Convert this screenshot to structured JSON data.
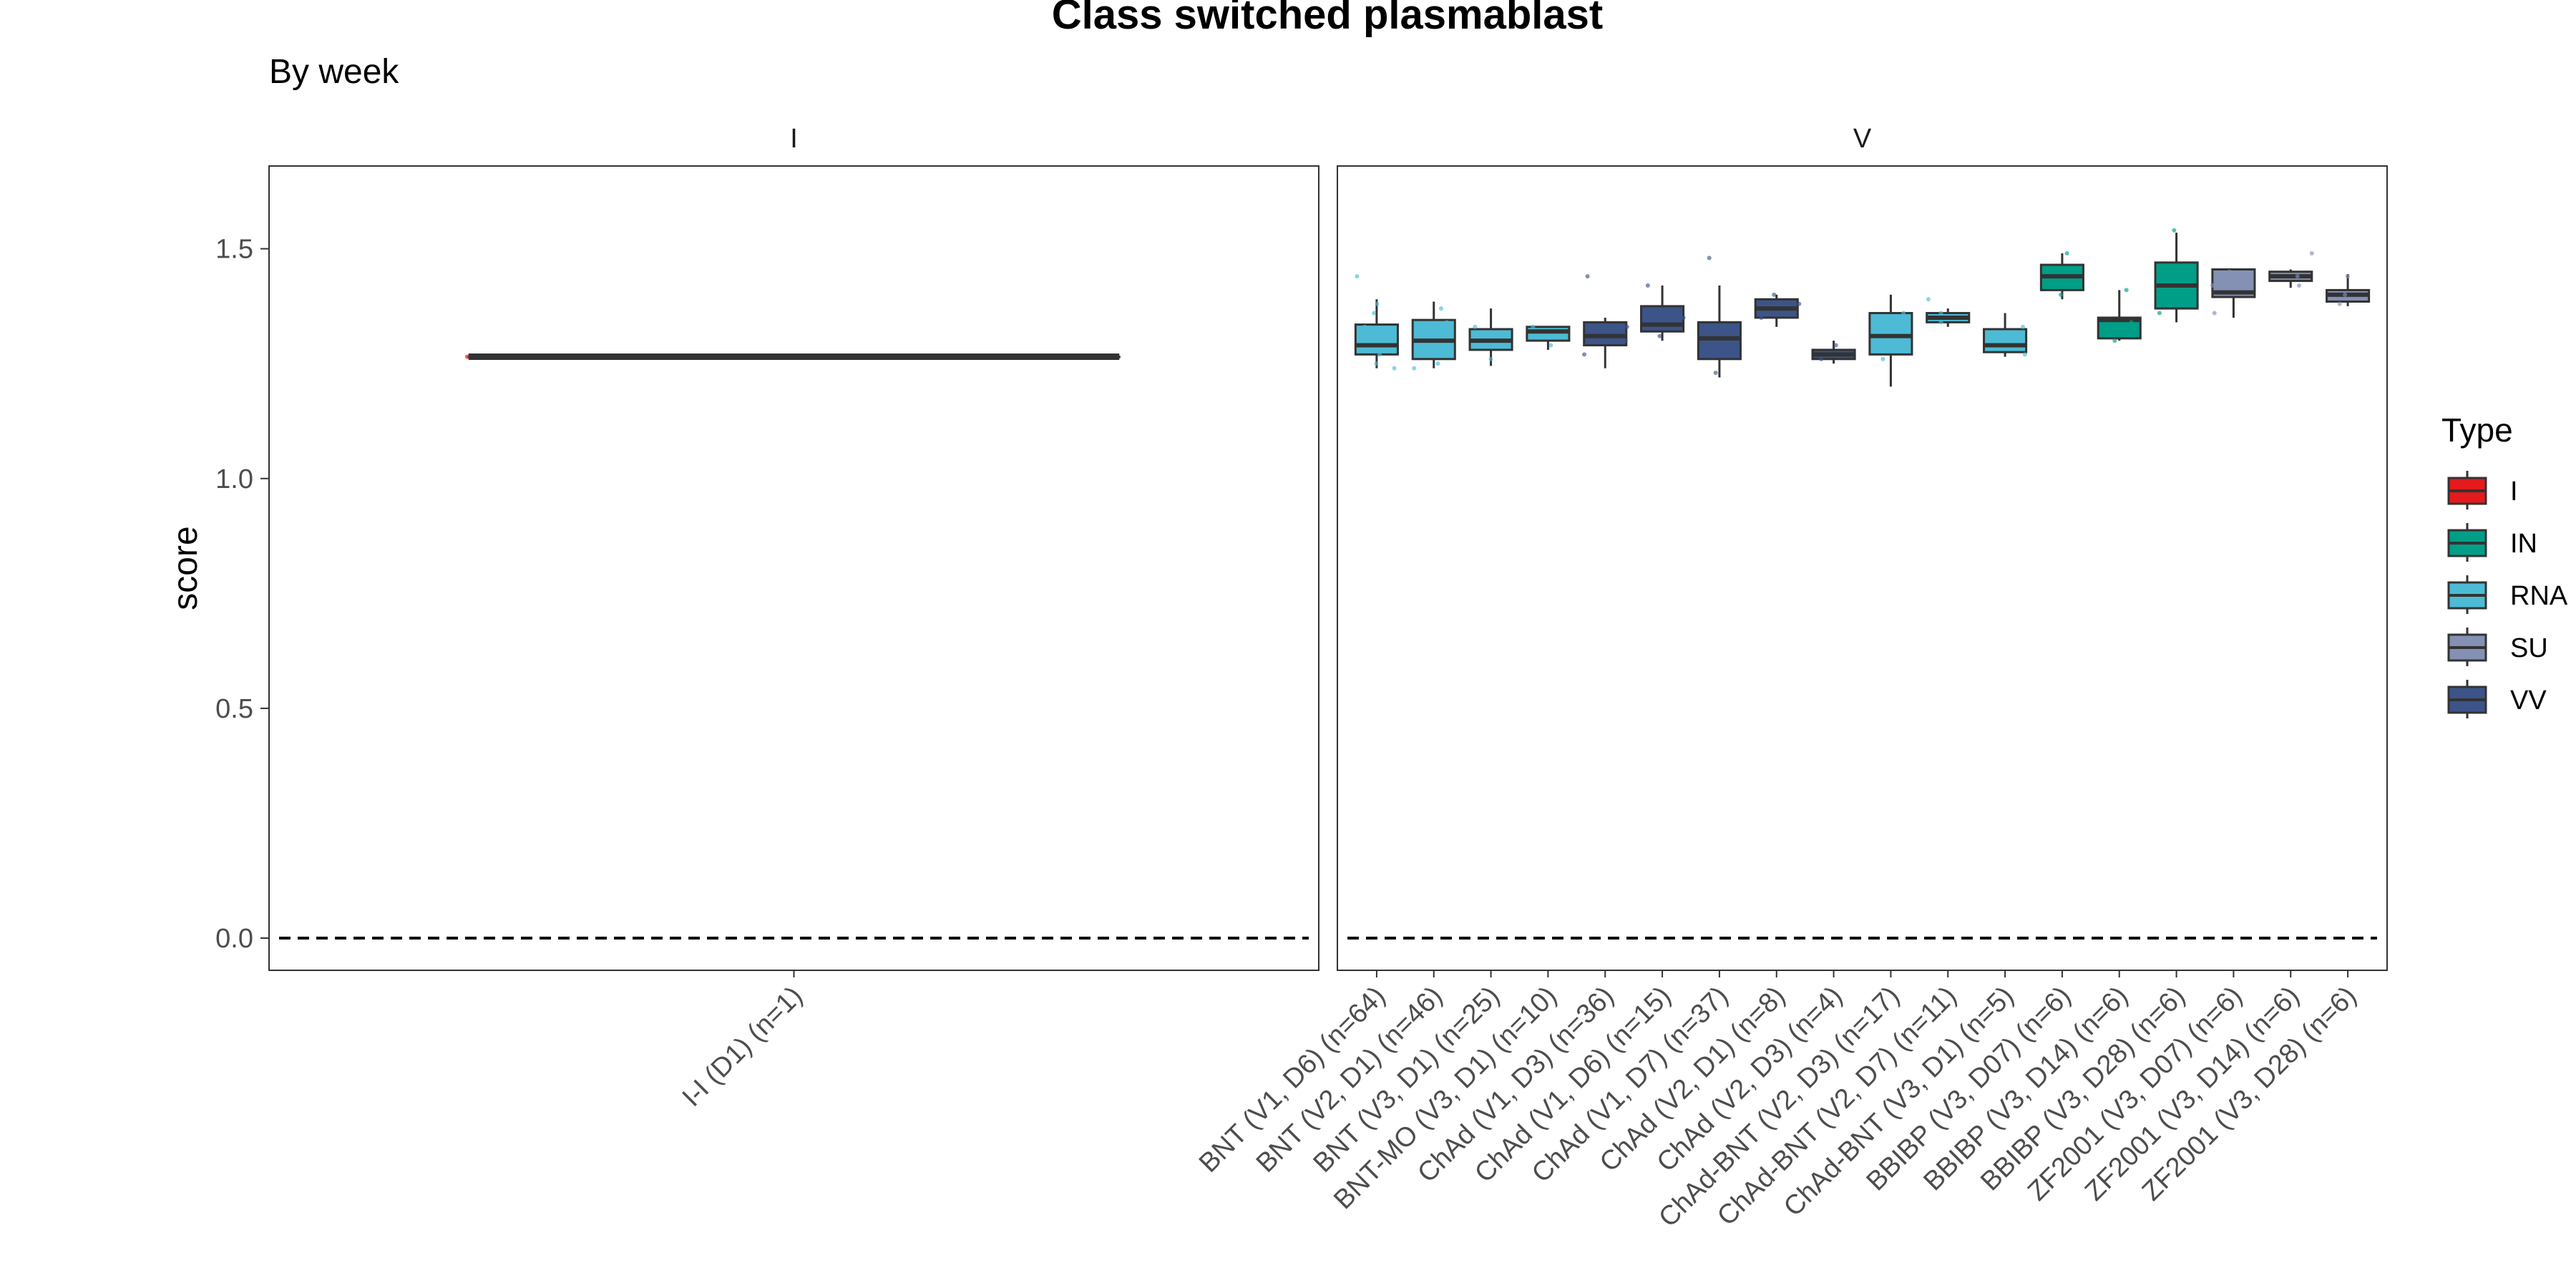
{
  "chart_data": {
    "type": "box",
    "title": "Class switched plasmablast",
    "subtitle": "By week",
    "ylabel": "score",
    "xlabel": "",
    "ylim": [
      -0.07,
      1.68
    ],
    "yticks": [
      0.0,
      0.5,
      1.0,
      1.5
    ],
    "ytick_labels": [
      "0.0",
      "0.5",
      "1.0",
      "1.5"
    ],
    "reference_line": {
      "y": 0.0,
      "style": "dashed"
    },
    "grid": false,
    "legend": {
      "title": "Type",
      "position": "right",
      "entries": [
        {
          "label": "I",
          "color": "#E41A1C"
        },
        {
          "label": "IN",
          "color": "#009E87"
        },
        {
          "label": "RNA",
          "color": "#4DBBD5"
        },
        {
          "label": "SU",
          "color": "#8491B4"
        },
        {
          "label": "VV",
          "color": "#3C5488"
        }
      ]
    },
    "type_colors": {
      "I": "#E41A1C",
      "IN": "#009E87",
      "RNA": "#4DBBD5",
      "SU": "#8491B4",
      "VV": "#3C5488"
    },
    "panels": [
      {
        "label": "I",
        "groups": [
          {
            "label": "I-I (D1) (n=1)",
            "type": "I",
            "q1": 1.265,
            "median": 1.265,
            "q3": 1.265,
            "whisker_low": 1.265,
            "whisker_high": 1.265,
            "points": [
              1.265
            ]
          }
        ]
      },
      {
        "label": "V",
        "groups": [
          {
            "label": "BNT (V1, D6) (n=64)",
            "type": "RNA",
            "q1": 1.27,
            "median": 1.29,
            "q3": 1.335,
            "whisker_low": 1.24,
            "whisker_high": 1.39,
            "points": [
              1.25,
              1.27,
              1.3,
              1.33,
              1.36,
              1.38,
              1.44,
              1.24
            ]
          },
          {
            "label": "BNT (V2, D1) (n=46)",
            "type": "RNA",
            "q1": 1.26,
            "median": 1.3,
            "q3": 1.345,
            "whisker_low": 1.24,
            "whisker_high": 1.385,
            "points": [
              1.25,
              1.28,
              1.31,
              1.34,
              1.37,
              1.24
            ]
          },
          {
            "label": "BNT (V3, D1) (n=25)",
            "type": "RNA",
            "q1": 1.28,
            "median": 1.3,
            "q3": 1.325,
            "whisker_low": 1.245,
            "whisker_high": 1.37,
            "points": [
              1.26,
              1.29,
              1.31,
              1.33
            ]
          },
          {
            "label": "BNT-MO (V3, D1) (n=10)",
            "type": "RNA",
            "q1": 1.3,
            "median": 1.32,
            "q3": 1.33,
            "whisker_low": 1.28,
            "whisker_high": 1.33,
            "points": [
              1.29,
              1.31,
              1.33
            ]
          },
          {
            "label": "ChAd (V1, D3) (n=36)",
            "type": "VV",
            "q1": 1.29,
            "median": 1.31,
            "q3": 1.34,
            "whisker_low": 1.24,
            "whisker_high": 1.35,
            "points": [
              1.27,
              1.3,
              1.33,
              1.44
            ]
          },
          {
            "label": "ChAd (V1, D6) (n=15)",
            "type": "VV",
            "q1": 1.32,
            "median": 1.335,
            "q3": 1.375,
            "whisker_low": 1.3,
            "whisker_high": 1.42,
            "points": [
              1.31,
              1.35,
              1.42
            ]
          },
          {
            "label": "ChAd (V1, D7) (n=37)",
            "type": "VV",
            "q1": 1.26,
            "median": 1.305,
            "q3": 1.34,
            "whisker_low": 1.22,
            "whisker_high": 1.42,
            "points": [
              1.23,
              1.29,
              1.33,
              1.48
            ]
          },
          {
            "label": "ChAd (V2, D1) (n=8)",
            "type": "VV",
            "q1": 1.35,
            "median": 1.37,
            "q3": 1.39,
            "whisker_low": 1.33,
            "whisker_high": 1.4,
            "points": [
              1.35,
              1.38,
              1.4
            ]
          },
          {
            "label": "ChAd (V2, D3) (n=4)",
            "type": "VV",
            "q1": 1.26,
            "median": 1.27,
            "q3": 1.28,
            "whisker_low": 1.25,
            "whisker_high": 1.3,
            "points": [
              1.26,
              1.29
            ]
          },
          {
            "label": "ChAd-BNT (V2, D3) (n=17)",
            "type": "RNA",
            "q1": 1.27,
            "median": 1.31,
            "q3": 1.36,
            "whisker_low": 1.2,
            "whisker_high": 1.4,
            "points": [
              1.26,
              1.32,
              1.36
            ]
          },
          {
            "label": "ChAd-BNT (V2, D7) (n=11)",
            "type": "RNA",
            "q1": 1.34,
            "median": 1.35,
            "q3": 1.36,
            "whisker_low": 1.33,
            "whisker_high": 1.37,
            "points": [
              1.34,
              1.36,
              1.39
            ]
          },
          {
            "label": "ChAd-BNT (V3, D1) (n=5)",
            "type": "RNA",
            "q1": 1.275,
            "median": 1.29,
            "q3": 1.325,
            "whisker_low": 1.265,
            "whisker_high": 1.36,
            "points": [
              1.27,
              1.3,
              1.33
            ]
          },
          {
            "label": "BBIBP (V3, D07) (n=6)",
            "type": "IN",
            "q1": 1.41,
            "median": 1.44,
            "q3": 1.465,
            "whisker_low": 1.39,
            "whisker_high": 1.49,
            "points": [
              1.4,
              1.45,
              1.49
            ]
          },
          {
            "label": "BBIBP (V3, D14) (n=6)",
            "type": "IN",
            "q1": 1.305,
            "median": 1.345,
            "q3": 1.35,
            "whisker_low": 1.3,
            "whisker_high": 1.41,
            "points": [
              1.3,
              1.34,
              1.41
            ]
          },
          {
            "label": "BBIBP (V3, D28) (n=6)",
            "type": "IN",
            "q1": 1.37,
            "median": 1.42,
            "q3": 1.47,
            "whisker_low": 1.34,
            "whisker_high": 1.535,
            "points": [
              1.36,
              1.43,
              1.54
            ]
          },
          {
            "label": "ZF2001 (V3, D07) (n=6)",
            "type": "SU",
            "q1": 1.395,
            "median": 1.405,
            "q3": 1.455,
            "whisker_low": 1.35,
            "whisker_high": 1.455,
            "points": [
              1.36,
              1.42,
              1.45
            ]
          },
          {
            "label": "ZF2001 (V3, D14) (n=6)",
            "type": "SU",
            "q1": 1.43,
            "median": 1.44,
            "q3": 1.45,
            "whisker_low": 1.415,
            "whisker_high": 1.455,
            "points": [
              1.42,
              1.44,
              1.49
            ]
          },
          {
            "label": "ZF2001 (V3, D28) (n=6)",
            "type": "SU",
            "q1": 1.385,
            "median": 1.4,
            "q3": 1.41,
            "whisker_low": 1.375,
            "whisker_high": 1.445,
            "points": [
              1.38,
              1.4,
              1.44
            ]
          }
        ]
      }
    ]
  }
}
